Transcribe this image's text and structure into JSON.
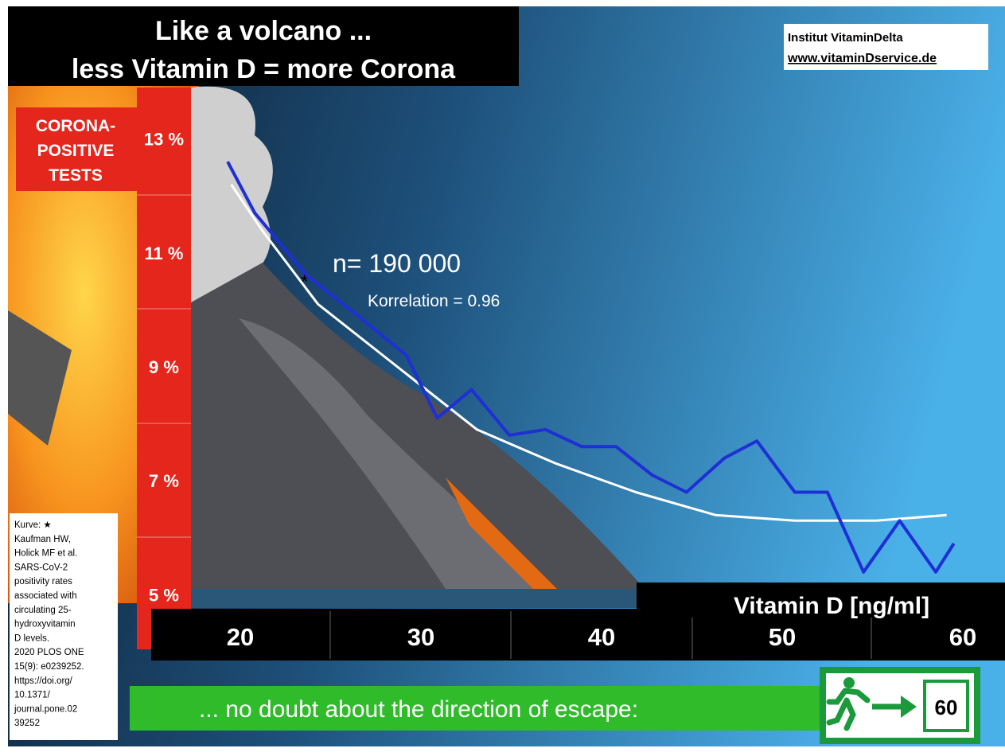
{
  "chart_data": {
    "type": "line",
    "title": [
      "Like a volcano  ...",
      "less Vitamin D = more Corona"
    ],
    "source": [
      "Institut VitaminDelta",
      "www.vitaminDservice.de"
    ],
    "ylabel": [
      "CORONA-",
      "POSITIVE",
      "TESTS"
    ],
    "xlabel": "Vitamin D [ng/ml]",
    "annotations": [
      "n= 190 000",
      "Korrelation = 0.96",
      "*"
    ],
    "reference": [
      "Kurve: ★",
      "Kaufman HW,",
      "Holick MF et al.",
      "SARS-CoV-2",
      "positivity rates",
      "associated with",
      "circulating 25-",
      "hydroxyvitamin",
      "D levels.",
      "2020 PLOS ONE",
      "15(9): e0239252.",
      "https://doi.org/",
      "10.1371/",
      "journal.pone.02",
      "39252"
    ],
    "banner": "... no doubt about the direction of escape:",
    "sign_label": "60",
    "xlim": [
      15,
      62
    ],
    "ylim": [
      4,
      14
    ],
    "xticks": [
      20,
      30,
      40,
      50,
      60
    ],
    "yticks": [
      {
        "value": 5,
        "label": "5 %"
      },
      {
        "value": 7,
        "label": "7 %"
      },
      {
        "value": 9,
        "label": "9 %"
      },
      {
        "value": 11,
        "label": "11 %"
      },
      {
        "value": 13,
        "label": "13 %"
      }
    ],
    "series": [
      {
        "color": "#ffffff",
        "x": [
          19.5,
          21.2,
          24.3,
          28.7,
          33.1,
          37.5,
          41.9,
          46.3,
          50.7,
          55.2,
          59.1
        ],
        "values": [
          12.2,
          11.4,
          10.1,
          9.0,
          7.9,
          7.3,
          6.8,
          6.4,
          6.3,
          6.3,
          6.4
        ]
      },
      {
        "color": "#1f2fd6",
        "x": [
          19.3,
          20.8,
          23.7,
          26.5,
          29.2,
          30.9,
          32.8,
          34.9,
          36.9,
          38.9,
          40.8,
          42.8,
          44.7,
          46.8,
          48.6,
          50.7,
          52.5,
          54.5,
          56.5,
          58.5,
          59.5
        ],
        "values": [
          12.6,
          11.7,
          10.6,
          9.9,
          9.2,
          8.1,
          8.6,
          7.8,
          7.9,
          7.6,
          7.6,
          7.1,
          6.8,
          7.4,
          7.7,
          6.8,
          6.8,
          5.4,
          6.3,
          5.4,
          5.9
        ]
      }
    ]
  }
}
